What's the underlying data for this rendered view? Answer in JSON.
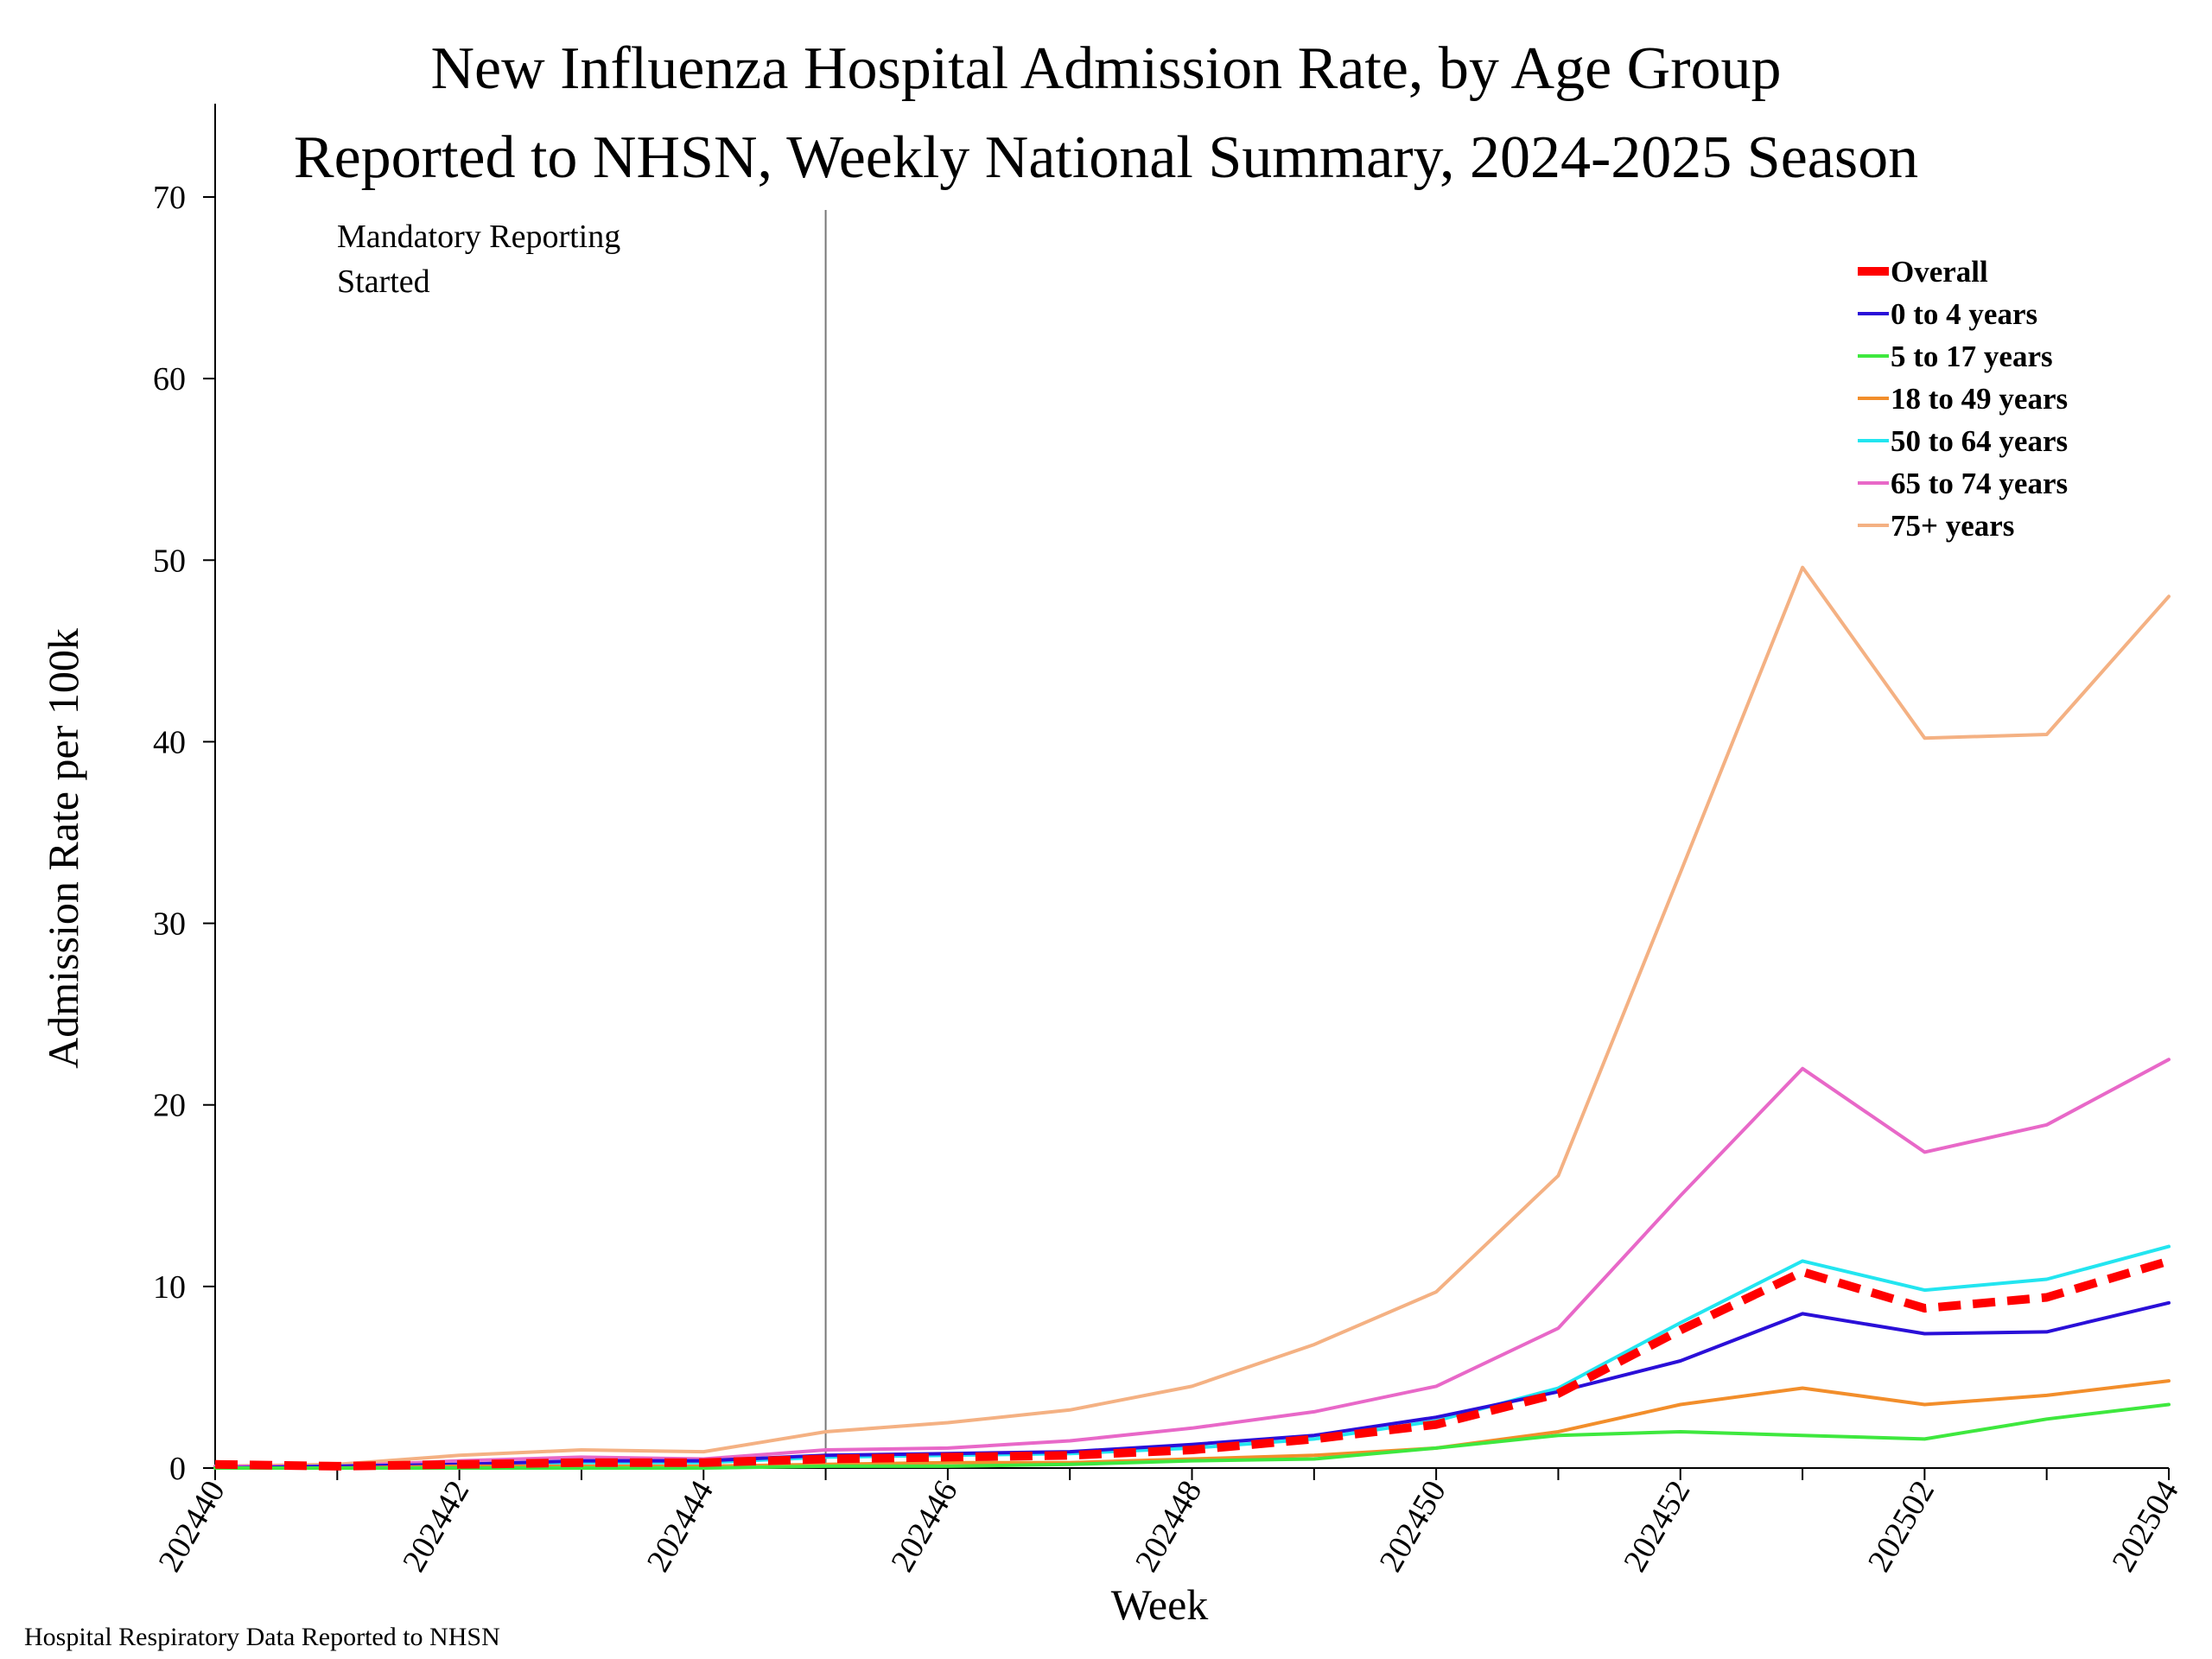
{
  "chart_data": {
    "type": "line",
    "title_line1": "New Influenza Hospital Admission Rate, by Age Group",
    "title_line2": "Reported to NHSN, Weekly National Summary, 2024-2025 Season",
    "xlabel": "Week",
    "ylabel": "Admission Rate per 100k",
    "ylim": [
      0,
      75
    ],
    "yticks": [
      0,
      10,
      20,
      30,
      40,
      50,
      60,
      70
    ],
    "x": [
      "202440",
      "202441",
      "202442",
      "202443",
      "202444",
      "202445",
      "202446",
      "202447",
      "202448",
      "202449",
      "202450",
      "202451",
      "202452",
      "202501",
      "202502",
      "202503",
      "202504"
    ],
    "xtick_labels": [
      "202440",
      "202442",
      "202444",
      "202446",
      "202448",
      "202450",
      "202452",
      "202502",
      "202504"
    ],
    "annotation": {
      "at": "202445",
      "line1": "Mandatory Reporting",
      "line2": "Started"
    },
    "legend_position": "top-right",
    "series": [
      {
        "name": "75+ years",
        "color": "#f4b183",
        "dashed": false,
        "values": [
          0.1,
          0.2,
          0.7,
          1.0,
          0.9,
          2.0,
          2.5,
          3.2,
          4.5,
          6.8,
          9.7,
          16.1,
          32.8,
          49.6,
          40.2,
          40.4,
          48.0
        ]
      },
      {
        "name": "65 to 74 years",
        "color": "#e868c8",
        "dashed": false,
        "values": [
          0.1,
          0.1,
          0.4,
          0.6,
          0.5,
          1.0,
          1.1,
          1.5,
          2.2,
          3.1,
          4.5,
          7.7,
          15.0,
          22.0,
          17.4,
          18.9,
          22.5
        ]
      },
      {
        "name": "50 to 64 years",
        "color": "#22e5f0",
        "dashed": false,
        "values": [
          0.0,
          0.1,
          0.2,
          0.3,
          0.3,
          0.6,
          0.7,
          0.8,
          1.1,
          1.6,
          2.6,
          4.4,
          8.0,
          11.4,
          9.8,
          10.4,
          12.2
        ]
      },
      {
        "name": "0 to 4 years",
        "color": "#2a0fd8",
        "dashed": false,
        "values": [
          0.0,
          0.1,
          0.2,
          0.4,
          0.4,
          0.7,
          0.8,
          0.9,
          1.3,
          1.8,
          2.8,
          4.2,
          5.9,
          8.5,
          7.4,
          7.5,
          9.1
        ]
      },
      {
        "name": "18 to 49 years",
        "color": "#f28e2b",
        "dashed": false,
        "values": [
          0.0,
          0.0,
          0.1,
          0.1,
          0.1,
          0.2,
          0.3,
          0.3,
          0.5,
          0.7,
          1.1,
          2.0,
          3.5,
          4.4,
          3.5,
          4.0,
          4.8
        ]
      },
      {
        "name": "5 to 17 years",
        "color": "#3ee83e",
        "dashed": false,
        "values": [
          0.0,
          0.0,
          0.0,
          0.0,
          0.0,
          0.1,
          0.1,
          0.2,
          0.4,
          0.5,
          1.1,
          1.8,
          2.0,
          1.8,
          1.6,
          2.7,
          3.5
        ]
      },
      {
        "name": "Overall",
        "color": "#ff0000",
        "dashed": true,
        "values": [
          0.2,
          0.1,
          0.2,
          0.3,
          0.3,
          0.5,
          0.6,
          0.7,
          1.0,
          1.6,
          2.4,
          4.1,
          7.6,
          10.8,
          8.8,
          9.4,
          11.4
        ]
      }
    ],
    "legend_order": [
      "Overall",
      "0 to 4 years",
      "5 to 17 years",
      "18 to 49 years",
      "50 to 64 years",
      "65 to 74 years",
      "75+ years"
    ]
  },
  "footer": "Hospital Respiratory Data Reported to NHSN"
}
